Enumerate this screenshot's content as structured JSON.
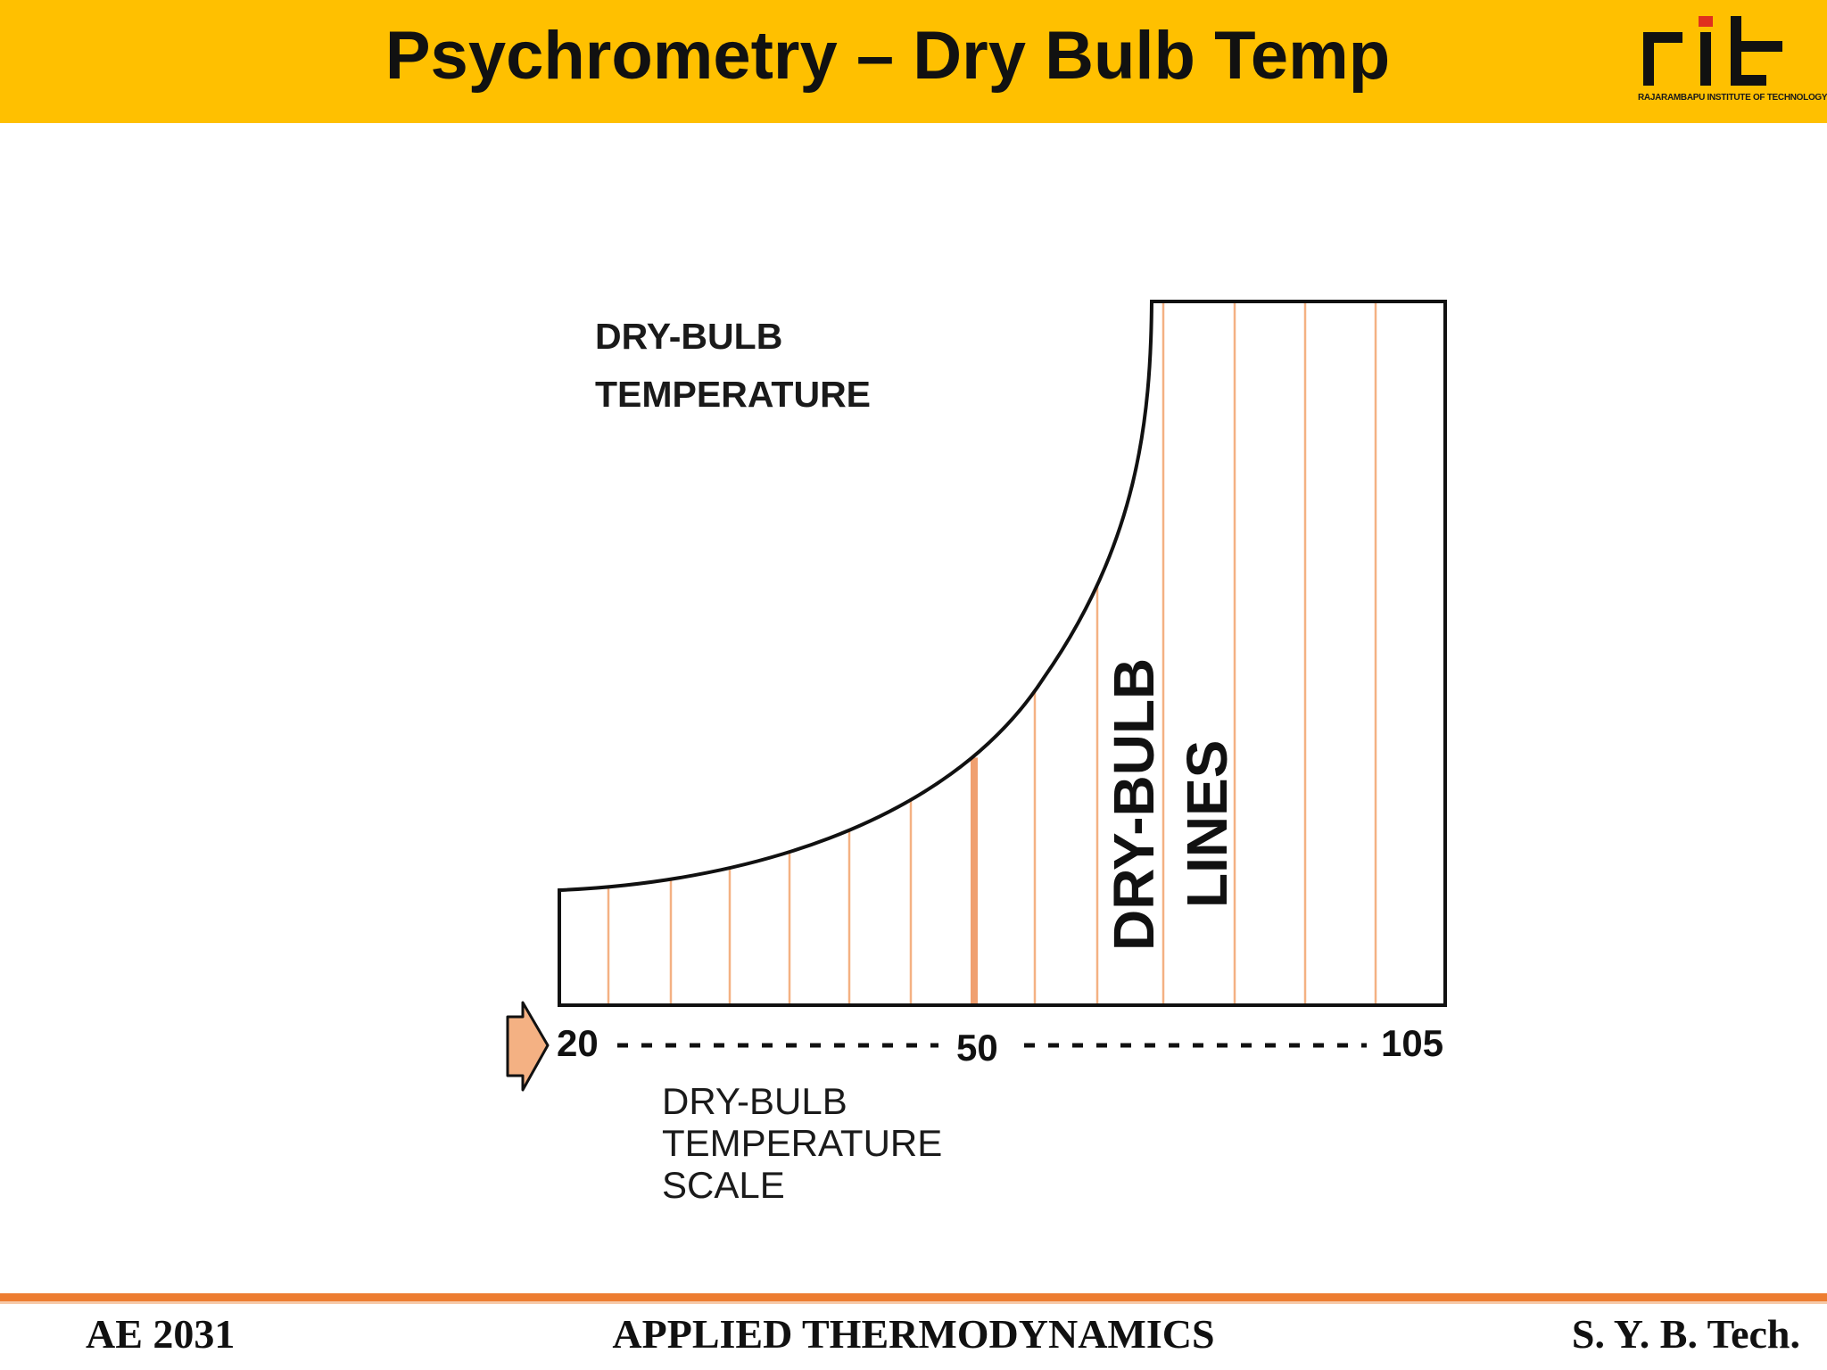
{
  "header": {
    "title": "Psychrometry – Dry Bulb Temp",
    "logo_mark": "rit",
    "logo_caption": "RAJARAMBAPU INSTITUTE OF TECHNOLOGY",
    "background_color": "#ffc000"
  },
  "diagram": {
    "top_label_line1": "DRY-BULB",
    "top_label_line2": "TEMPERATURE",
    "lines_label_line1": "DRY-BULB",
    "lines_label_line2": "LINES",
    "scale_label_line1": "DRY-BULB",
    "scale_label_line2": "TEMPERATURE",
    "scale_label_line3": "SCALE",
    "scale_arrow_icon": "arrow-right-icon",
    "scale_ticks": [
      {
        "label": "20",
        "value": 20
      },
      {
        "label": "50",
        "value": 50
      },
      {
        "label": "105",
        "value": 105
      }
    ],
    "dry_bulb_lines": 14,
    "highlighted_value": 50,
    "line_color": "#f4b183",
    "highlight_color": "#f0a070",
    "outline_color": "#111111"
  },
  "footer": {
    "left": "AE 2031",
    "center": "APPLIED THERMODYNAMICS",
    "right": "S. Y. B. Tech.",
    "line_color": "#ed7d31"
  }
}
